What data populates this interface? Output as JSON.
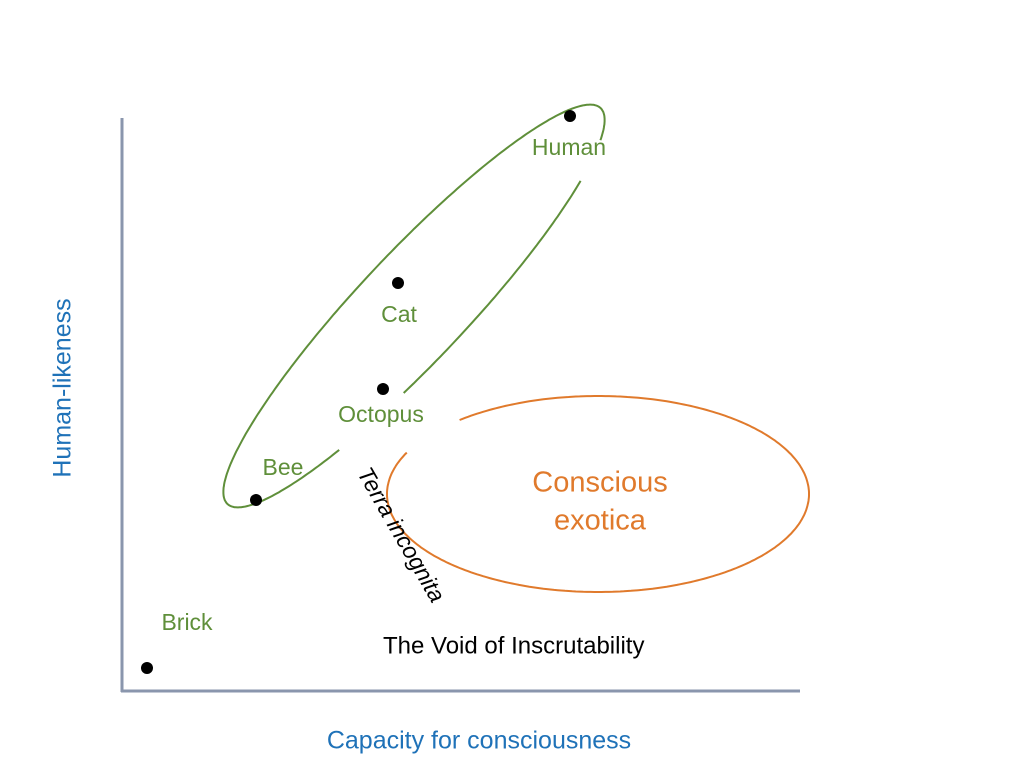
{
  "axes": {
    "x_label": "Capacity for consciousness",
    "y_label": "Human-likeness"
  },
  "points": [
    {
      "label": "Human"
    },
    {
      "label": "Cat"
    },
    {
      "label": "Octopus"
    },
    {
      "label": "Bee"
    },
    {
      "label": "Brick"
    }
  ],
  "regions": [
    {
      "label_lines": [
        "Conscious",
        "exotica"
      ]
    }
  ],
  "annotations": [
    "Terra incognita",
    "The Void of Inscrutability"
  ]
}
